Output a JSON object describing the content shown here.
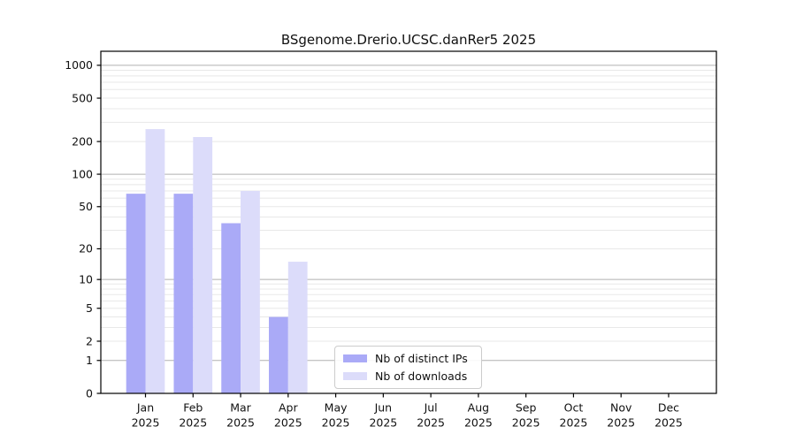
{
  "title": "BSgenome.Drerio.UCSC.danRer5 2025",
  "chart_data": {
    "type": "bar",
    "title": "BSgenome.Drerio.UCSC.danRer5 2025",
    "categories": [
      "Jan",
      "Feb",
      "Mar",
      "Apr",
      "May",
      "Jun",
      "Jul",
      "Aug",
      "Sep",
      "Oct",
      "Nov",
      "Dec"
    ],
    "year": "2025",
    "series": [
      {
        "name": "Nb of distinct IPs",
        "key": "distinct-ips",
        "color": "#aaaaf7",
        "values": [
          66,
          66,
          35,
          4,
          0,
          0,
          0,
          0,
          0,
          0,
          0,
          0
        ]
      },
      {
        "name": "Nb of downloads",
        "key": "downloads",
        "color": "#dcdcfa",
        "values": [
          260,
          220,
          70,
          15,
          0,
          0,
          0,
          0,
          0,
          0,
          0,
          0
        ]
      }
    ],
    "xlabel": "",
    "ylabel": "",
    "yscale": "log1p",
    "yticks": [
      0,
      1,
      2,
      5,
      10,
      20,
      50,
      100,
      200,
      500,
      1000
    ],
    "ylim": [
      0,
      1280
    ],
    "grid": true,
    "grid_major_values": [
      1,
      10,
      100,
      1000
    ],
    "legend_position": "lower-center-inside"
  },
  "legend": {
    "items": [
      {
        "label": "Nb of distinct IPs",
        "color": "#aaaaf7"
      },
      {
        "label": "Nb of downloads",
        "color": "#dcdcfa"
      }
    ]
  },
  "colors": {
    "bar_distinct_ips": "#aaaaf7",
    "bar_downloads": "#dcdcfa",
    "grid_major": "#b0b0b0",
    "grid_minor": "#e8e8e8",
    "spine": "#000000",
    "text": "#111111",
    "background": "#ffffff"
  }
}
